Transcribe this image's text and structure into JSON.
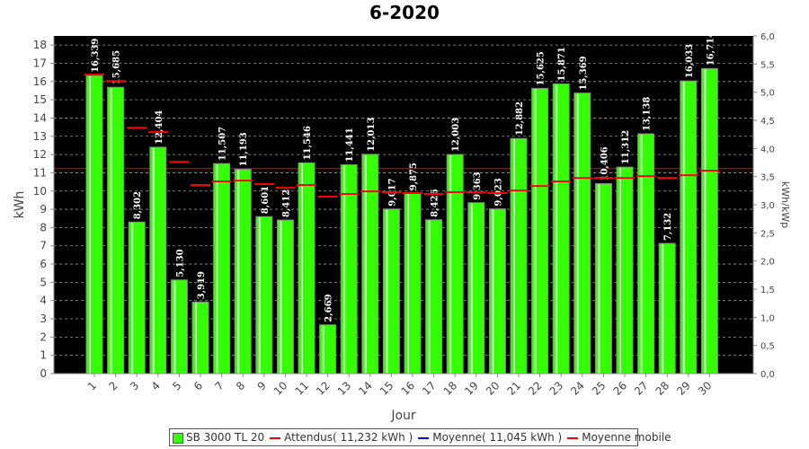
{
  "chart_data": {
    "type": "bar",
    "title": "6-2020",
    "xlabel": "Jour",
    "ylabel": "kWh",
    "y2label": "kWh/kWp",
    "ylim": [
      0,
      18.5
    ],
    "y2lim": [
      0,
      6.0
    ],
    "yticks": [
      "0",
      "1",
      "2",
      "3",
      "4",
      "5",
      "6",
      "7",
      "8",
      "9",
      "10",
      "11",
      "12",
      "13",
      "14",
      "15",
      "16",
      "17",
      "18"
    ],
    "y2ticks": [
      "0,0",
      "0,5",
      "1,0",
      "1,5",
      "2,0",
      "2,5",
      "3,0",
      "3,5",
      "4,0",
      "4,5",
      "5,0",
      "5,5",
      "6,0"
    ],
    "categories": [
      "1",
      "2",
      "3",
      "4",
      "5",
      "6",
      "7",
      "8",
      "9",
      "10",
      "11",
      "12",
      "13",
      "14",
      "15",
      "16",
      "17",
      "18",
      "19",
      "20",
      "21",
      "22",
      "23",
      "24",
      "25",
      "26",
      "27",
      "28",
      "29",
      "30"
    ],
    "series": [
      {
        "name": "SB 3000 TL 20",
        "type": "bar",
        "color": "#33ff00",
        "values": [
          16.339,
          15.685,
          8.302,
          12.404,
          5.13,
          3.919,
          11.507,
          11.193,
          8.601,
          8.412,
          11.546,
          2.669,
          11.441,
          12.013,
          9.017,
          9.875,
          8.426,
          12.003,
          9.363,
          9.023,
          12.882,
          15.625,
          15.871,
          15.369,
          10.406,
          11.312,
          13.138,
          7.132,
          16.033,
          16.714
        ],
        "labels": [
          "16,339",
          "15,685",
          "8,302",
          "12,404",
          "5,130",
          "3,919",
          "11,507",
          "11,193",
          "8,601",
          "8,412",
          "11,546",
          "2,669",
          "11,441",
          "12,013",
          "9,017",
          "9,875",
          "8,426",
          "12,003",
          "9,363",
          "9,023",
          "12,882",
          "15,625",
          "15,871",
          "15,369",
          "10,406",
          "11,312",
          "13,138",
          "7,132",
          "16,033",
          "16,714"
        ]
      },
      {
        "name": "Moyenne mobile",
        "type": "step",
        "color": "#ff0000",
        "values": [
          16.38,
          16.03,
          13.47,
          13.23,
          11.6,
          10.33,
          10.53,
          10.57,
          10.38,
          10.18,
          10.33,
          9.69,
          9.84,
          9.98,
          9.94,
          9.89,
          9.84,
          9.94,
          9.94,
          9.89,
          10.03,
          10.28,
          10.53,
          10.72,
          10.72,
          10.72,
          10.82,
          10.72,
          10.87,
          11.12
        ]
      }
    ],
    "reference_lines": [
      {
        "name": "Attendus",
        "value": 11.232,
        "color": "#ff0000"
      },
      {
        "name": "Moyenne",
        "value": 11.045,
        "color": "#0000ff"
      }
    ],
    "legend": {
      "placement": "bottom",
      "items": [
        "SB 3000 TL 20",
        "Attendus( 11,232 kWh )",
        "Moyenne( 11,045 kWh )",
        "Moyenne mobile"
      ]
    },
    "grid": true
  }
}
